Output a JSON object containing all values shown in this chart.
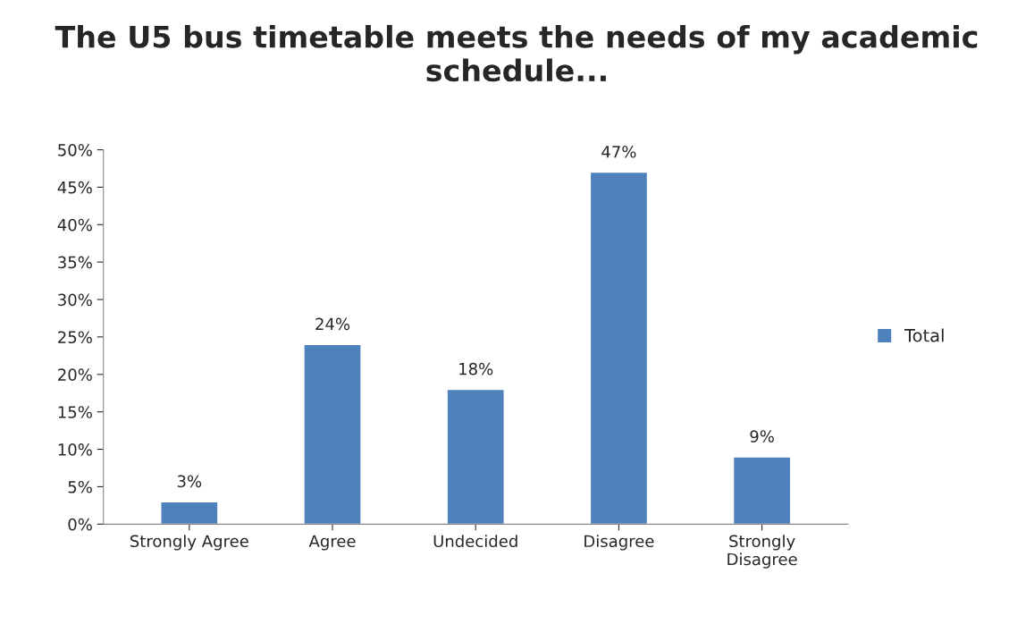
{
  "chart_data": {
    "type": "bar",
    "title": "The U5 bus timetable meets the needs of my academic schedule...",
    "categories": [
      "Strongly Agree",
      "Agree",
      "Undecided",
      "Disagree",
      "Strongly\nDisagree"
    ],
    "series": [
      {
        "name": "Total",
        "color": "#4f81bd",
        "values": [
          3,
          24,
          18,
          47,
          9
        ],
        "value_labels": [
          "3%",
          "24%",
          "18%",
          "47%",
          "9%"
        ]
      }
    ],
    "ylim": [
      0,
      50
    ],
    "yticks": [
      {
        "value": 0,
        "label": "0%"
      },
      {
        "value": 5,
        "label": "5%"
      },
      {
        "value": 10,
        "label": "10%"
      },
      {
        "value": 15,
        "label": "15%"
      },
      {
        "value": 20,
        "label": "20%"
      },
      {
        "value": 25,
        "label": "25%"
      },
      {
        "value": 30,
        "label": "30%"
      },
      {
        "value": 35,
        "label": "35%"
      },
      {
        "value": 40,
        "label": "40%"
      },
      {
        "value": 45,
        "label": "45%"
      },
      {
        "value": 50,
        "label": "50%"
      }
    ],
    "legend": "right",
    "grid": false
  }
}
